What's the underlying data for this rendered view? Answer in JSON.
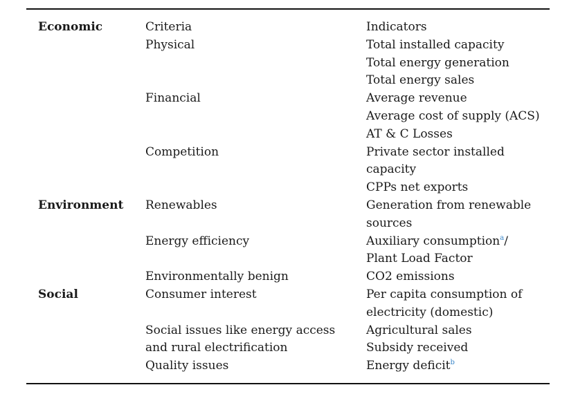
{
  "table": {
    "rows": [
      {
        "category": "Economic",
        "criteria": "Criteria",
        "indicator": "Indicators"
      },
      {
        "category": "",
        "criteria": "Physical",
        "indicator": "Total installed capacity"
      },
      {
        "category": "",
        "criteria": "",
        "indicator": "Total energy generation"
      },
      {
        "category": "",
        "criteria": "",
        "indicator": "Total energy sales"
      },
      {
        "category": "",
        "criteria": "Financial",
        "indicator": "Average revenue"
      },
      {
        "category": "",
        "criteria": "",
        "indicator": "Average cost of supply (ACS)"
      },
      {
        "category": "",
        "criteria": "",
        "indicator": "AT & C Losses"
      },
      {
        "category": "",
        "criteria": "Competition",
        "indicator": "Private sector installed"
      },
      {
        "category": "",
        "criteria": "",
        "indicator": "capacity"
      },
      {
        "category": "",
        "criteria": "",
        "indicator": "CPPs net exports"
      },
      {
        "category": "Environment",
        "criteria": "Renewables",
        "indicator": "Generation from renewable"
      },
      {
        "category": "",
        "criteria": "",
        "indicator": "sources"
      },
      {
        "category": "",
        "criteria": "Energy efficiency",
        "indicator": "Auxiliary consumption",
        "indicator_sup": "a",
        "indicator_tail": "/"
      },
      {
        "category": "",
        "criteria": "",
        "indicator": "Plant Load Factor"
      },
      {
        "category": "",
        "criteria": "Environmentally benign",
        "indicator": "CO2 emissions"
      },
      {
        "category": "Social",
        "criteria": "Consumer interest",
        "indicator": "Per capita consumption of"
      },
      {
        "category": "",
        "criteria": "",
        "indicator": "electricity (domestic)"
      },
      {
        "category": "",
        "criteria": "Social issues like energy access",
        "indicator": "Agricultural sales"
      },
      {
        "category": "",
        "criteria": "and rural electrification",
        "indicator": "Subsidy received"
      },
      {
        "category": "",
        "criteria": "Quality issues",
        "indicator": "Energy deficit",
        "indicator_sup": "b"
      }
    ]
  }
}
